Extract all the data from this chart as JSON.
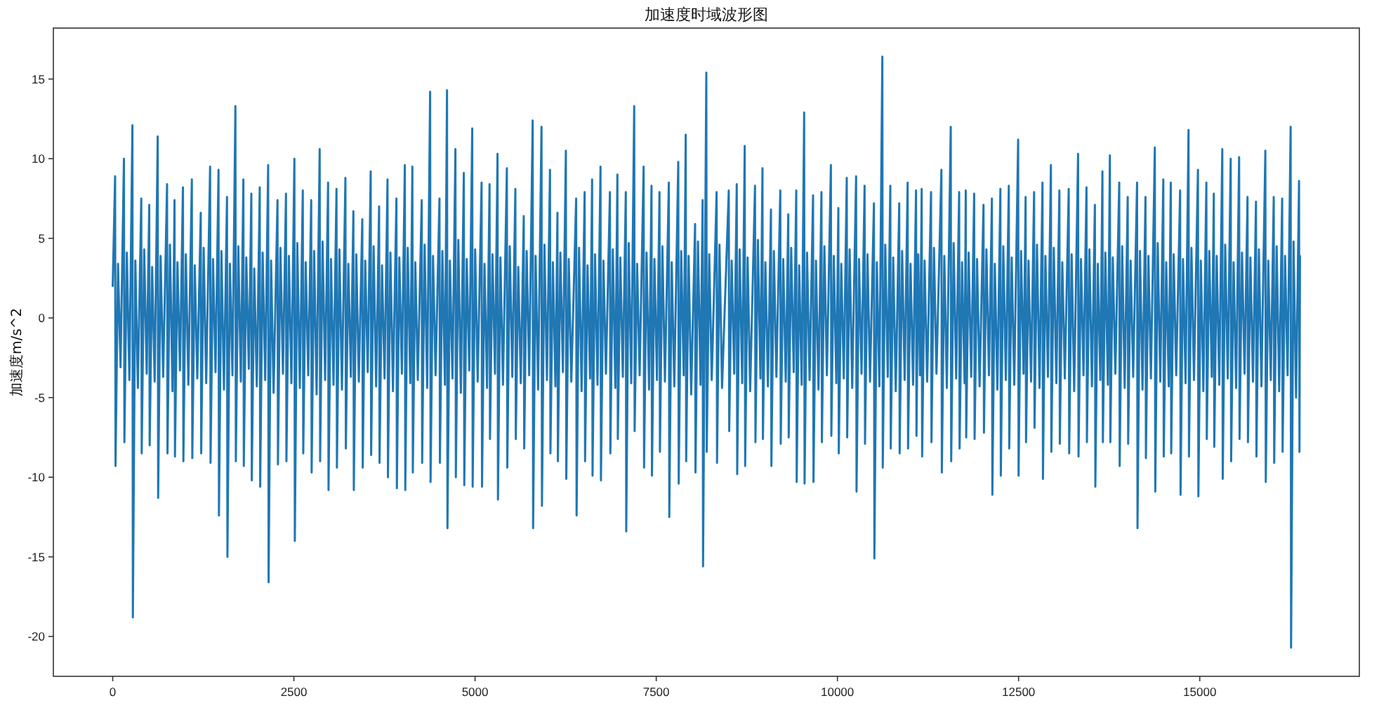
{
  "chart_data": {
    "type": "line",
    "title": "加速度时域波形图",
    "ylabel": "加速度m/s^2",
    "color": "#1f77b4",
    "xlim": [
      -819,
      17202
    ],
    "ylim": [
      -22.5,
      18.2
    ],
    "xticks": [
      0,
      2500,
      5000,
      7500,
      10000,
      12500,
      15000
    ],
    "yticks": [
      -20,
      -15,
      -10,
      -5,
      0,
      5,
      10,
      15
    ],
    "x": [
      0,
      33,
      39,
      73,
      108,
      155,
      161,
      195,
      230,
      272,
      278,
      312,
      347,
      394,
      400,
      434,
      469,
      504,
      510,
      544,
      579,
      621,
      627,
      661,
      696,
      750,
      756,
      790,
      825,
      853,
      859,
      893,
      928,
      969,
      975,
      1009,
      1044,
      1092,
      1098,
      1132,
      1167,
      1215,
      1221,
      1255,
      1290,
      1344,
      1350,
      1384,
      1419,
      1460,
      1466,
      1500,
      1535,
      1577,
      1583,
      1617,
      1652,
      1693,
      1699,
      1733,
      1768,
      1803,
      1809,
      1843,
      1878,
      1913,
      1919,
      1953,
      1988,
      2029,
      2035,
      2069,
      2104,
      2145,
      2151,
      2185,
      2220,
      2274,
      2280,
      2314,
      2349,
      2391,
      2397,
      2431,
      2466,
      2507,
      2513,
      2547,
      2582,
      2623,
      2629,
      2663,
      2698,
      2739,
      2745,
      2779,
      2814,
      2856,
      2862,
      2896,
      2931,
      2972,
      2978,
      3012,
      3047,
      3088,
      3094,
      3128,
      3163,
      3211,
      3217,
      3251,
      3286,
      3321,
      3327,
      3361,
      3396,
      3444,
      3450,
      3484,
      3519,
      3560,
      3566,
      3600,
      3635,
      3676,
      3682,
      3716,
      3751,
      3792,
      3798,
      3832,
      3867,
      3915,
      3921,
      3955,
      3990,
      4031,
      4037,
      4071,
      4106,
      4135,
      4141,
      4175,
      4210,
      4264,
      4270,
      4304,
      4339,
      4380,
      4386,
      4420,
      4455,
      4509,
      4515,
      4549,
      4584,
      4613,
      4619,
      4653,
      4688,
      4729,
      4735,
      4769,
      4804,
      4845,
      4851,
      4885,
      4920,
      4961,
      4967,
      5001,
      5036,
      5090,
      5096,
      5130,
      5165,
      5200,
      5206,
      5240,
      5275,
      5310,
      5316,
      5350,
      5385,
      5439,
      5445,
      5479,
      5514,
      5556,
      5562,
      5596,
      5631,
      5672,
      5678,
      5712,
      5747,
      5795,
      5801,
      5835,
      5870,
      5917,
      5923,
      5957,
      5992,
      6034,
      6040,
      6074,
      6109,
      6137,
      6143,
      6177,
      6212,
      6253,
      6259,
      6293,
      6328,
      6395,
      6401,
      6435,
      6470,
      6512,
      6518,
      6552,
      6587,
      6615,
      6621,
      6655,
      6690,
      6731,
      6737,
      6771,
      6806,
      6861,
      6867,
      6901,
      6936,
      6964,
      6970,
      7004,
      7039,
      7080,
      7086,
      7120,
      7155,
      7196,
      7202,
      7236,
      7271,
      7326,
      7332,
      7366,
      7401,
      7435,
      7441,
      7475,
      7510,
      7545,
      7551,
      7585,
      7620,
      7674,
      7680,
      7714,
      7749,
      7804,
      7810,
      7844,
      7879,
      7907,
      7913,
      7947,
      7982,
      8036,
      8042,
      8076,
      8111,
      8140,
      8146,
      8191,
      8197,
      8231,
      8266,
      8333,
      8339,
      8373,
      8408,
      8501,
      8507,
      8541,
      8576,
      8611,
      8617,
      8651,
      8686,
      8721,
      8727,
      8761,
      8796,
      8863,
      8869,
      8903,
      8938,
      8966,
      8972,
      9006,
      9041,
      9083,
      9089,
      9123,
      9158,
      9212,
      9218,
      9252,
      9287,
      9322,
      9328,
      9362,
      9397,
      9432,
      9438,
      9472,
      9507,
      9541,
      9547,
      9581,
      9616,
      9664,
      9670,
      9704,
      9739,
      9780,
      9786,
      9820,
      9855,
      9910,
      9916,
      9950,
      9985,
      10013,
      10019,
      10053,
      10088,
      10129,
      10135,
      10169,
      10204,
      10258,
      10264,
      10298,
      10333,
      10375,
      10381,
      10415,
      10450,
      10504,
      10510,
      10544,
      10579,
      10620,
      10626,
      10660,
      10695,
      10730,
      10736,
      10770,
      10805,
      10853,
      10859,
      10893,
      10928,
      10969,
      10975,
      11009,
      11044,
      11085,
      11091,
      11115,
      11140,
      11163,
      11169,
      11203,
      11238,
      11292,
      11298,
      11332,
      11367,
      11435,
      11441,
      11475,
      11510,
      11564,
      11570,
      11604,
      11639,
      11680,
      11686,
      11720,
      11755,
      11771,
      11777,
      11811,
      11846,
      11887,
      11893,
      11927,
      11962,
      12016,
      12022,
      12056,
      12091,
      12132,
      12138,
      12172,
      12207,
      12249,
      12255,
      12289,
      12324,
      12365,
      12371,
      12405,
      12440,
      12494,
      12500,
      12534,
      12569,
      12597,
      12603,
      12637,
      12672,
      12714,
      12720,
      12754,
      12789,
      12830,
      12836,
      12870,
      12905,
      12946,
      12952,
      12986,
      13021,
      13063,
      13069,
      13103,
      13138,
      13192,
      13198,
      13232,
      13267,
      13321,
      13327,
      13361,
      13396,
      13437,
      13443,
      13477,
      13512,
      13553,
      13559,
      13593,
      13628,
      13657,
      13663,
      13697,
      13732,
      13760,
      13766,
      13800,
      13835,
      13889,
      13895,
      13929,
      13964,
      14006,
      14012,
      14046,
      14081,
      14135,
      14141,
      14175,
      14210,
      14251,
      14257,
      14291,
      14326,
      14380,
      14386,
      14420,
      14455,
      14497,
      14503,
      14537,
      14572,
      14600,
      14606,
      14640,
      14675,
      14729,
      14735,
      14769,
      14804,
      14845,
      14851,
      14885,
      14920,
      14975,
      14981,
      15015,
      15050,
      15091,
      15097,
      15131,
      15166,
      15194,
      15200,
      15234,
      15269,
      15311,
      15317,
      15351,
      15386,
      15427,
      15433,
      15467,
      15502,
      15543,
      15549,
      15583,
      15618,
      15659,
      15665,
      15699,
      15734,
      15776,
      15782,
      15816,
      15851,
      15905,
      15911,
      15945,
      15980,
      16021,
      16027,
      16061,
      16096,
      16137,
      16143,
      16177,
      16212,
      16254,
      16260,
      16294,
      16329,
      16370,
      16376,
      16383
    ],
    "values": [
      2.0,
      8.9,
      -9.3,
      3.4,
      -3.1,
      10.0,
      -7.8,
      4.1,
      -3.9,
      12.1,
      -18.8,
      3.6,
      -4.4,
      7.5,
      -8.5,
      4.3,
      -3.5,
      7.1,
      -8.0,
      3.2,
      -4.0,
      11.4,
      -11.3,
      3.9,
      -3.7,
      8.4,
      -8.5,
      4.6,
      -4.6,
      7.4,
      -8.7,
      3.5,
      -3.3,
      8.2,
      -9.0,
      4.0,
      -4.2,
      8.7,
      -8.8,
      3.3,
      -3.8,
      6.6,
      -8.5,
      4.4,
      -4.1,
      9.5,
      -9.1,
      3.7,
      -3.4,
      9.3,
      -12.4,
      4.2,
      -4.5,
      7.6,
      -15.0,
      3.4,
      -3.6,
      13.3,
      -9.0,
      4.5,
      -4.0,
      8.7,
      -9.3,
      3.8,
      -3.2,
      7.8,
      -10.2,
      3.1,
      -4.3,
      8.2,
      -10.6,
      4.1,
      -3.9,
      9.6,
      -16.6,
      3.6,
      -4.7,
      7.4,
      -9.2,
      4.4,
      -3.5,
      7.8,
      -9.0,
      3.9,
      -4.1,
      10.0,
      -14.0,
      4.7,
      -4.4,
      8.0,
      -8.5,
      3.5,
      -3.6,
      7.4,
      -9.7,
      4.2,
      -4.8,
      10.6,
      -9.0,
      4.8,
      -3.9,
      8.5,
      -10.8,
      3.7,
      -4.2,
      8.1,
      -9.4,
      4.3,
      -4.5,
      8.8,
      -8.2,
      3.4,
      -3.7,
      6.7,
      -10.8,
      4.0,
      -4.0,
      6.2,
      -9.4,
      3.6,
      -3.4,
      9.2,
      -8.6,
      4.5,
      -4.3,
      7.0,
      -9.1,
      3.3,
      -3.8,
      8.7,
      -10.0,
      4.1,
      -4.6,
      7.5,
      -10.7,
      3.8,
      -3.5,
      9.6,
      -10.8,
      4.4,
      -4.1,
      9.5,
      -9.7,
      3.5,
      -3.9,
      7.4,
      -9.1,
      4.6,
      -4.4,
      14.2,
      -10.3,
      3.9,
      -3.6,
      7.5,
      -9.1,
      4.2,
      -4.2,
      14.3,
      -13.2,
      3.6,
      -3.8,
      10.6,
      -10.0,
      4.9,
      -4.7,
      9.1,
      -10.5,
      3.7,
      -3.3,
      11.9,
      -10.6,
      4.3,
      -4.0,
      8.5,
      -10.6,
      3.4,
      -4.4,
      8.4,
      -7.6,
      4.0,
      -3.5,
      10.3,
      -11.4,
      3.8,
      -4.2,
      9.4,
      -9.4,
      4.5,
      -3.7,
      8.1,
      -7.6,
      3.2,
      -4.1,
      6.4,
      -8.2,
      4.2,
      -3.6,
      12.4,
      -13.2,
      3.9,
      -4.5,
      12.0,
      -11.8,
      4.6,
      -3.9,
      9.3,
      -8.5,
      3.5,
      -4.3,
      6.6,
      -9.0,
      4.1,
      -3.4,
      10.5,
      -10.1,
      3.7,
      -4.0,
      7.5,
      -12.4,
      4.4,
      -4.6,
      7.9,
      -9.0,
      3.3,
      -3.8,
      8.7,
      -9.9,
      4.0,
      -4.2,
      9.5,
      -10.2,
      3.6,
      -3.5,
      7.9,
      -8.5,
      4.3,
      -4.4,
      9.0,
      -7.6,
      3.8,
      -3.7,
      7.9,
      -13.4,
      4.7,
      -4.1,
      13.3,
      -7.1,
      3.4,
      -3.6,
      9.5,
      -9.4,
      4.1,
      -4.5,
      8.3,
      -9.9,
      3.7,
      -3.9,
      7.9,
      -8.4,
      4.5,
      -4.0,
      8.5,
      -12.5,
      3.5,
      -4.3,
      9.8,
      -10.4,
      4.2,
      -3.6,
      11.5,
      -9.0,
      3.9,
      -4.8,
      5.9,
      -9.7,
      4.8,
      -4.2,
      7.4,
      -15.6,
      15.4,
      -8.4,
      4.0,
      -3.9,
      7.9,
      -9.1,
      4.6,
      -4.4,
      8.0,
      -7.1,
      3.6,
      -3.5,
      8.4,
      -9.8,
      4.3,
      -4.1,
      10.8,
      -9.3,
      3.8,
      -4.6,
      8.3,
      -7.8,
      4.9,
      -3.8,
      9.4,
      -7.6,
      3.5,
      -4.3,
      6.8,
      -9.3,
      4.2,
      -3.7,
      8.0,
      -7.9,
      3.7,
      -4.0,
      6.5,
      -7.5,
      4.4,
      -3.4,
      8.0,
      -10.3,
      3.3,
      -4.2,
      12.9,
      -10.4,
      4.1,
      -3.9,
      7.7,
      -10.3,
      3.6,
      -4.5,
      7.9,
      -7.8,
      4.5,
      -3.6,
      9.6,
      -7.4,
      3.9,
      -4.1,
      6.9,
      -8.5,
      3.4,
      -3.8,
      8.8,
      -7.5,
      4.3,
      -4.4,
      8.9,
      -10.9,
      3.7,
      -3.5,
      8.3,
      -7.9,
      4.0,
      -4.0,
      7.2,
      -15.1,
      3.5,
      -4.3,
      16.4,
      -9.4,
      4.6,
      -3.7,
      8.3,
      -8.2,
      3.8,
      -4.6,
      7.2,
      -8.5,
      4.2,
      -3.9,
      8.5,
      -8.2,
      3.4,
      -4.2,
      8.0,
      -7.4,
      4.0,
      -3.6,
      8.1,
      -8.7,
      3.6,
      -4.0,
      7.9,
      -7.8,
      4.4,
      -3.5,
      9.3,
      -9.7,
      3.9,
      -4.4,
      12.0,
      -9.0,
      4.7,
      -3.8,
      7.9,
      -8.2,
      3.5,
      -4.1,
      8.0,
      -7.5,
      4.1,
      -3.7,
      7.8,
      -7.6,
      3.7,
      -4.3,
      7.1,
      -7.2,
      4.3,
      -3.6,
      7.5,
      -11.1,
      3.4,
      -4.5,
      8.1,
      -9.9,
      4.5,
      -3.9,
      8.3,
      -8.2,
      3.8,
      -4.2,
      11.2,
      -9.9,
      4.2,
      -3.5,
      7.6,
      -7.8,
      3.6,
      -4.0,
      7.9,
      -6.9,
      4.6,
      -4.4,
      8.5,
      -10.1,
      3.9,
      -3.7,
      9.6,
      -8.4,
      4.4,
      -4.1,
      8.0,
      -7.9,
      3.5,
      -3.8,
      8.1,
      -8.5,
      4.0,
      -4.6,
      10.3,
      -8.7,
      3.7,
      -3.6,
      8.2,
      -7.8,
      4.3,
      -4.3,
      7.1,
      -10.6,
      3.4,
      -3.9,
      9.2,
      -7.8,
      4.1,
      -4.2,
      10.2,
      -7.8,
      3.8,
      -3.5,
      8.5,
      -9.3,
      4.5,
      -4.4,
      7.6,
      -7.9,
      3.6,
      -3.7,
      8.5,
      -13.2,
      4.2,
      -4.5,
      7.6,
      -8.8,
      3.9,
      -3.8,
      10.7,
      -10.9,
      4.7,
      -4.0,
      8.7,
      -8.7,
      3.5,
      -4.3,
      8.5,
      -8.5,
      4.0,
      -3.6,
      8.0,
      -11.1,
      3.7,
      -4.1,
      11.8,
      -8.7,
      4.4,
      -3.9,
      9.3,
      -11.2,
      3.6,
      -4.6,
      8.5,
      -7.6,
      4.2,
      -3.7,
      7.8,
      -8.1,
      3.9,
      -4.2,
      10.6,
      -10.1,
      4.6,
      -3.8,
      10.0,
      -9.0,
      3.5,
      -4.4,
      10.1,
      -7.6,
      4.1,
      -3.5,
      7.6,
      -7.8,
      3.8,
      -4.0,
      7.3,
      -8.7,
      4.3,
      -4.3,
      10.5,
      -10.3,
      3.6,
      -3.9,
      7.6,
      -9.1,
      4.5,
      -4.6,
      7.5,
      -8.4,
      3.9,
      -3.6,
      12.0,
      -20.7,
      4.8,
      -5.0,
      8.6,
      -8.4,
      3.9
    ]
  }
}
